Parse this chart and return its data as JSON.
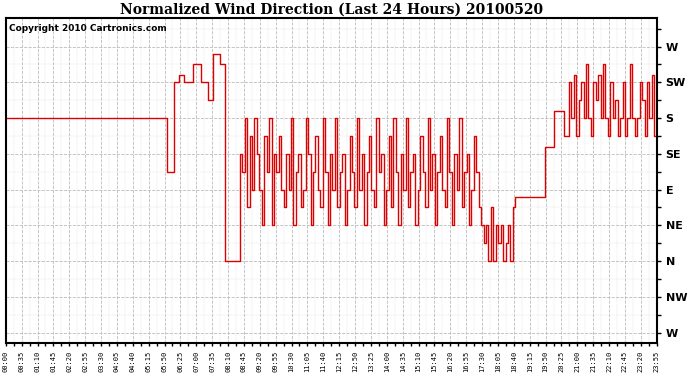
{
  "title": "Normalized Wind Direction (Last 24 Hours) 20100520",
  "copyright_text": "Copyright 2010 Cartronics.com",
  "line_color": "#dd0000",
  "bg_color": "#ffffff",
  "grid_color": "#bbbbbb",
  "ytick_labels_top_to_bottom": [
    "W",
    "SW",
    "S",
    "SE",
    "E",
    "NE",
    "N",
    "NW",
    "W"
  ],
  "ytick_values": [
    8,
    7,
    6,
    5,
    4,
    3,
    2,
    1,
    0
  ],
  "time_labels": [
    "00:00",
    "00:35",
    "01:10",
    "01:45",
    "02:20",
    "02:55",
    "03:30",
    "04:05",
    "04:40",
    "05:15",
    "05:50",
    "06:25",
    "07:00",
    "07:35",
    "08:10",
    "08:45",
    "09:20",
    "09:55",
    "10:30",
    "11:05",
    "11:40",
    "12:15",
    "12:50",
    "13:25",
    "14:00",
    "14:35",
    "15:10",
    "15:45",
    "16:20",
    "16:55",
    "17:30",
    "18:05",
    "18:40",
    "19:15",
    "19:50",
    "20:25",
    "21:00",
    "21:35",
    "22:10",
    "22:45",
    "23:20",
    "23:55"
  ],
  "figsize": [
    6.9,
    3.75
  ],
  "dpi": 100,
  "wind_data": [
    6,
    6,
    6,
    6,
    6,
    6,
    6,
    6,
    6,
    6,
    6,
    6,
    6,
    6,
    6,
    6,
    6,
    6,
    6,
    6,
    6,
    6,
    6,
    6,
    6,
    6,
    6,
    6,
    6,
    6,
    6,
    6,
    6,
    6,
    6,
    6,
    6,
    6,
    6,
    6,
    6,
    6,
    6,
    6,
    6,
    6,
    6,
    6,
    6,
    6,
    6,
    6,
    6,
    6,
    6,
    6,
    6,
    6,
    6,
    6,
    6,
    6,
    6,
    6,
    6,
    6,
    4.5,
    4.5,
    4.5,
    7,
    7,
    7.2,
    7.2,
    7,
    7,
    7,
    7,
    7.5,
    7.5,
    7.5,
    7,
    7,
    7,
    6.5,
    6.5,
    7.8,
    7.8,
    7.8,
    7.5,
    7.5,
    2,
    2,
    2,
    2,
    2,
    2,
    5,
    4.5,
    6,
    3.5,
    5.5,
    4,
    6,
    5,
    4,
    3,
    5.5,
    4.5,
    6,
    3,
    5,
    4.5,
    5.5,
    4,
    3.5,
    5,
    4,
    6,
    3,
    4.5,
    5,
    3.5,
    4,
    6,
    5,
    3,
    4.5,
    5.5,
    4,
    3.5,
    6,
    4.5,
    3,
    5,
    4,
    6,
    3.5,
    4.5,
    5,
    3,
    4,
    5.5,
    4.5,
    3.5,
    6,
    4,
    5,
    3,
    4.5,
    5.5,
    4,
    3.5,
    6,
    4.5,
    5,
    3,
    4,
    5.5,
    3.5,
    6,
    4.5,
    3,
    5,
    4,
    6,
    3.5,
    4.5,
    5,
    3,
    4,
    5.5,
    4.5,
    3.5,
    6,
    4,
    5,
    3,
    4.5,
    5.5,
    4,
    3.5,
    6,
    4.5,
    3,
    5,
    4,
    6,
    3.5,
    4.5,
    5,
    3,
    4,
    5.5,
    4.5,
    3.5,
    3,
    2.5,
    3,
    2,
    3.5,
    2,
    3,
    2.5,
    3,
    2,
    2.5,
    3,
    2,
    3.5,
    3.8,
    3.8,
    3.8,
    3.8,
    3.8,
    3.8,
    3.8,
    3.8,
    3.8,
    3.8,
    3.8,
    3.8,
    5.2,
    5.2,
    5.2,
    5.2,
    6.2,
    6.2,
    6.2,
    6.2,
    5.5,
    5.5,
    7,
    6,
    7.2,
    5.5,
    6.5,
    7,
    6,
    7.5,
    6,
    5.5,
    7,
    6.5,
    7.2,
    6,
    7.5,
    6,
    5.5,
    7,
    6,
    6.5,
    5.5,
    6,
    7,
    5.5,
    6,
    7.5,
    6,
    5.5,
    6,
    7,
    6.5,
    5.5,
    7,
    6,
    7.2,
    5.5,
    6.5
  ]
}
